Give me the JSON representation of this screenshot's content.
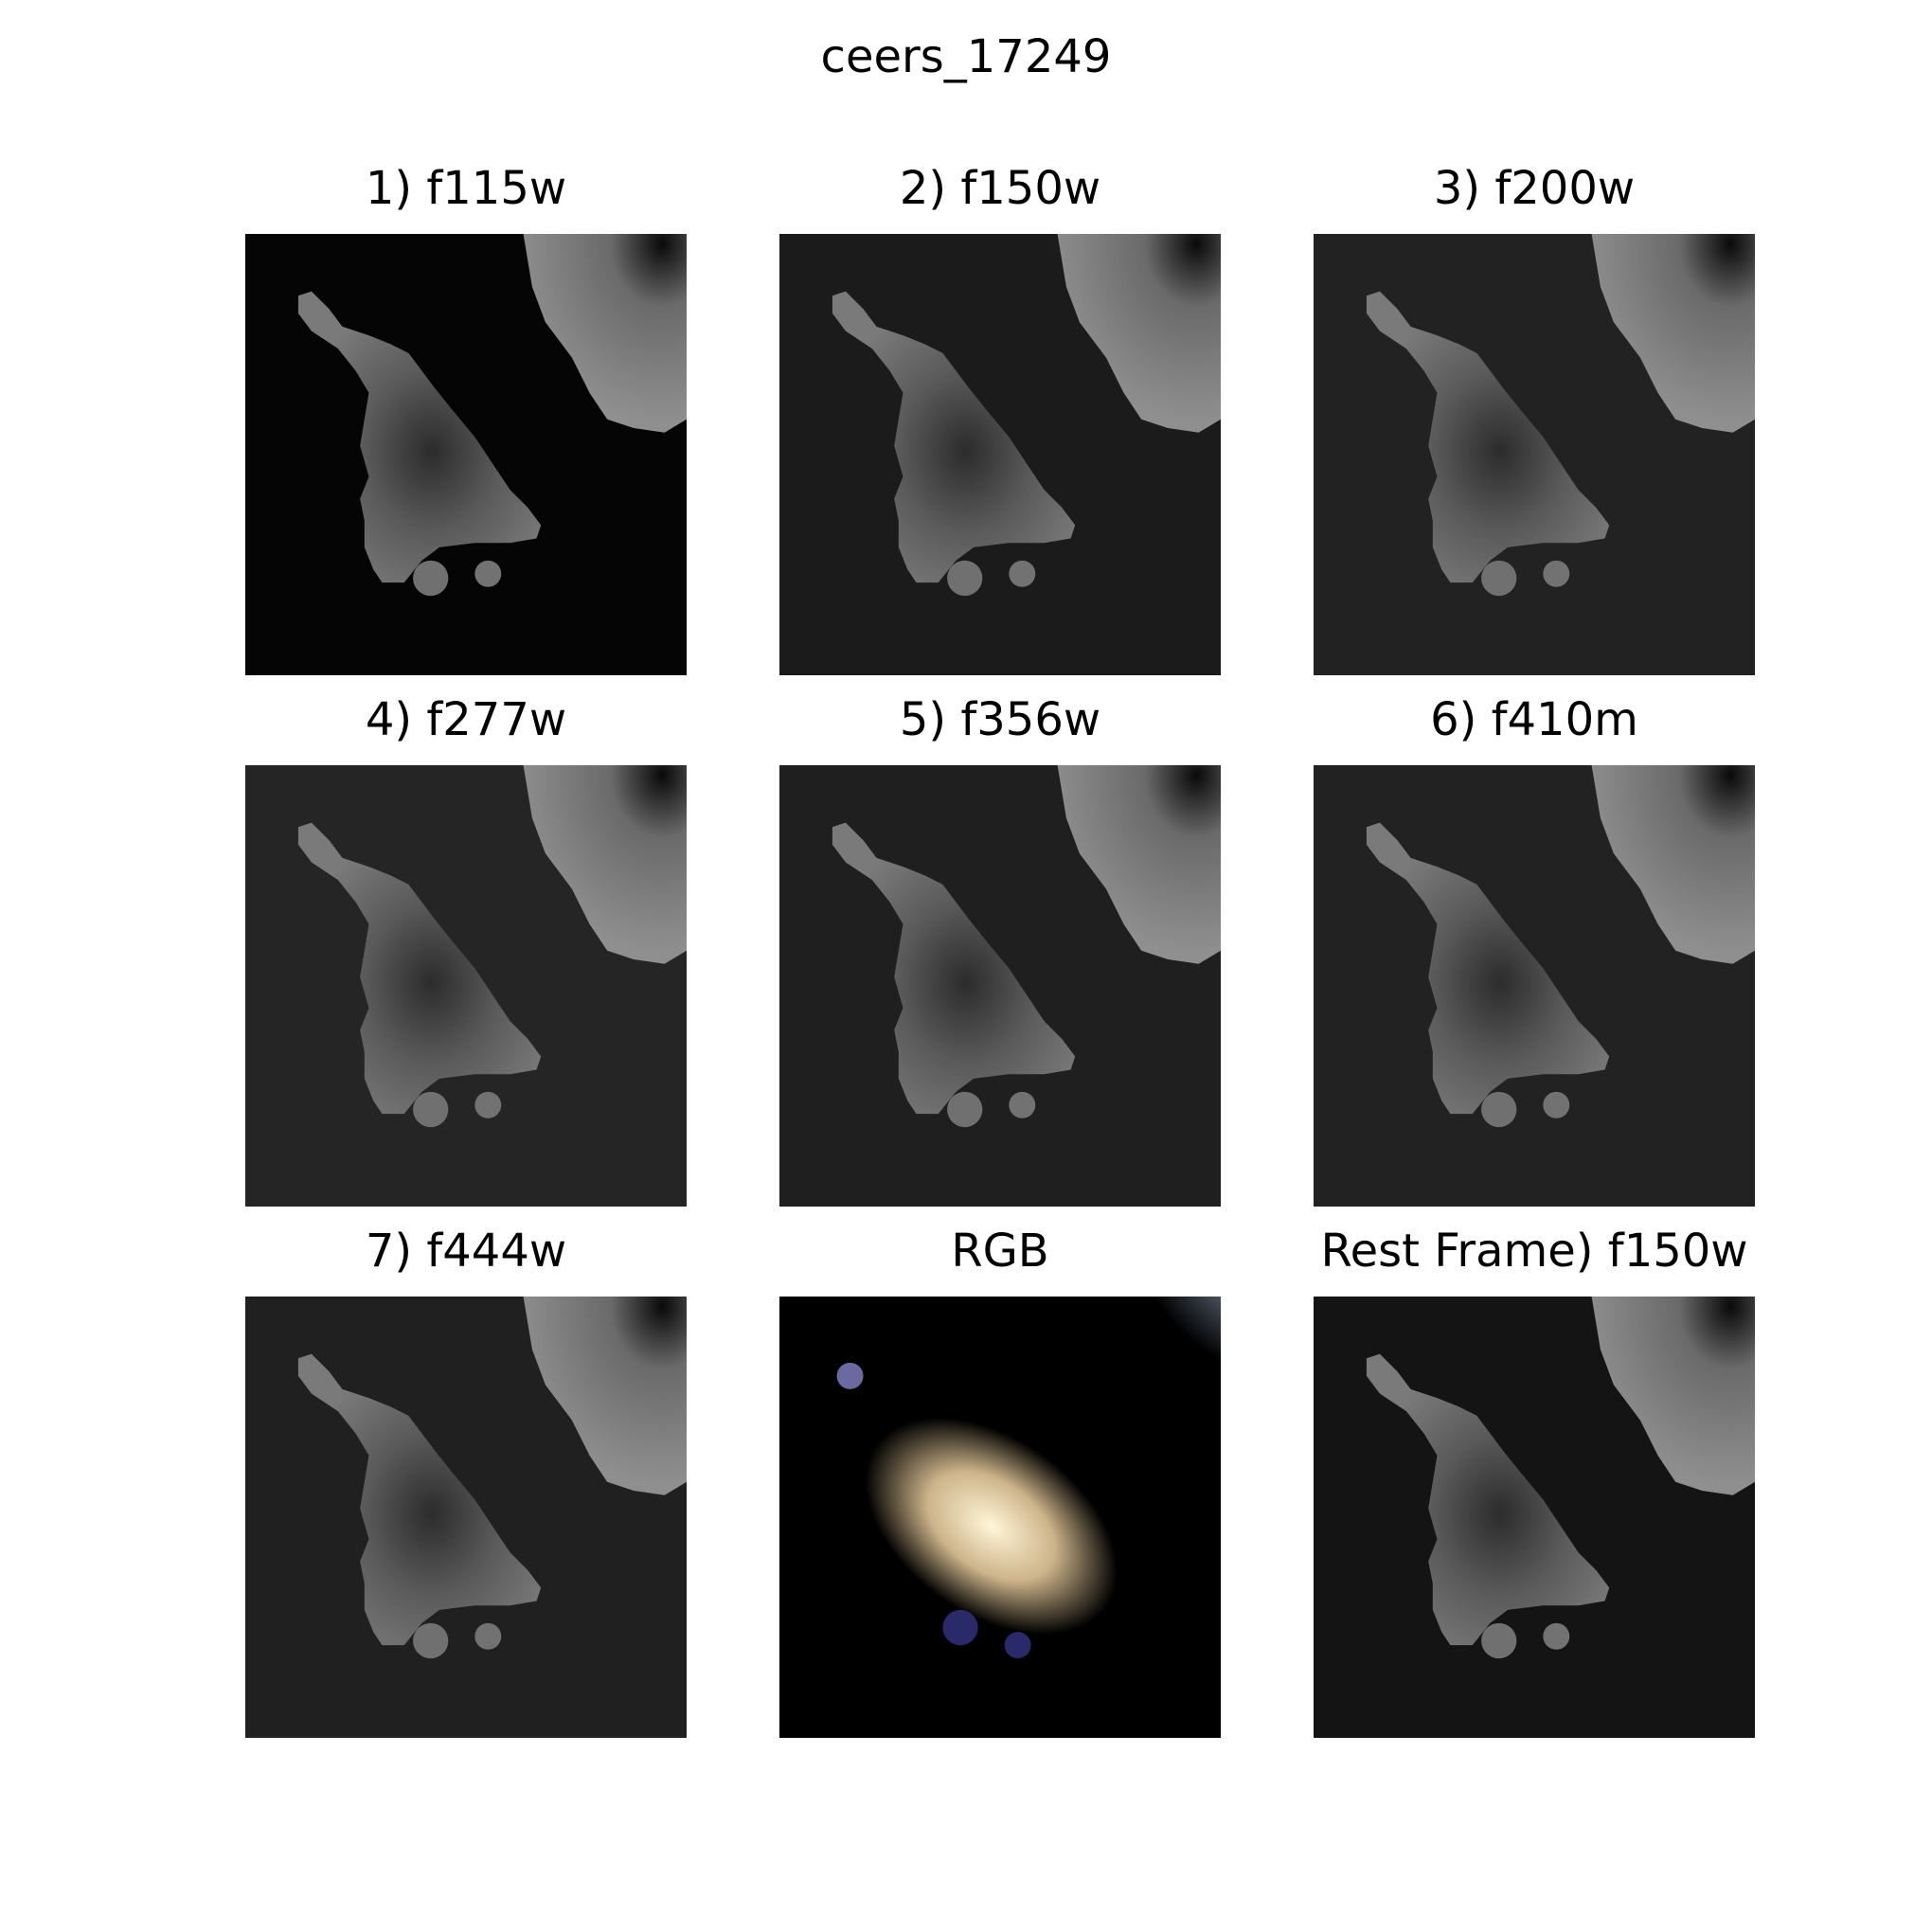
{
  "title": "ceers_17249",
  "panels": [
    {
      "title": "1) f115w",
      "bg": "#050505",
      "kind": "gray"
    },
    {
      "title": "2) f150w",
      "bg": "#1b1b1b",
      "kind": "gray"
    },
    {
      "title": "3) f200w",
      "bg": "#222222",
      "kind": "gray"
    },
    {
      "title": "4) f277w",
      "bg": "#252525",
      "kind": "gray"
    },
    {
      "title": "5) f356w",
      "bg": "#1f1f1f",
      "kind": "gray"
    },
    {
      "title": "6) f410m",
      "bg": "#222222",
      "kind": "gray"
    },
    {
      "title": "7) f444w",
      "bg": "#202020",
      "kind": "gray"
    },
    {
      "title": "RGB",
      "bg": "#000000",
      "kind": "rgb"
    },
    {
      "title": "Rest Frame) f150w",
      "bg": "#141414",
      "kind": "gray"
    }
  ]
}
